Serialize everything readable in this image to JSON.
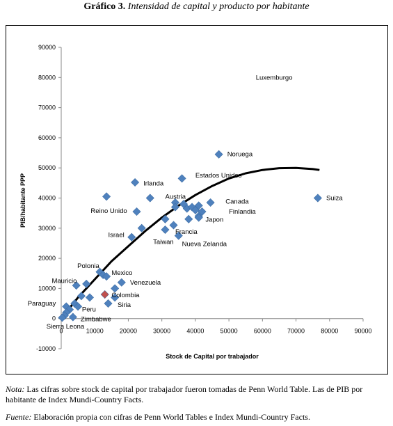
{
  "figure": {
    "number": "Gráfico 3.",
    "title": "Intensidad de capital y producto por habitante"
  },
  "notes": {
    "nota_lead": "Nota:",
    "nota_text": "Las cifras sobre stock de capital por trabajador fueron tomadas de Penn World Table. Las de PIB por habitante de Index Mundi-Country Facts.",
    "fuente_lead": "Fuente:",
    "fuente_text": "Elaboración propia con cifras de Penn World Tables e Index Mundi-Country Facts."
  },
  "chart_data": {
    "type": "scatter",
    "xlabel": "Stock de Capital por trabajador",
    "ylabel": "PIB/habitante PPP",
    "xlim": [
      0,
      90000
    ],
    "ylim": [
      -10000,
      90000
    ],
    "xticks": [
      0,
      10000,
      20000,
      30000,
      40000,
      50000,
      60000,
      70000,
      80000,
      90000
    ],
    "yticks": [
      -10000,
      0,
      10000,
      20000,
      30000,
      40000,
      50000,
      60000,
      70000,
      80000,
      90000
    ],
    "grid": false,
    "colors": {
      "point": "#4f81bd",
      "point_highlight": "#c0504d",
      "trend": "#000000"
    },
    "labels": [
      {
        "text": "Luxemburgo",
        "x": 58000,
        "y": 80000
      },
      {
        "text": "Noruega",
        "x": 49500,
        "y": 54500
      },
      {
        "text": "Estados Unidos",
        "x": 40000,
        "y": 47500
      },
      {
        "text": "Irlanda",
        "x": 24500,
        "y": 44800
      },
      {
        "text": "Austria",
        "x": 31000,
        "y": 40500
      },
      {
        "text": "Canada",
        "x": 49000,
        "y": 38800
      },
      {
        "text": "Suiza",
        "x": 79000,
        "y": 40000
      },
      {
        "text": "Reino Unido",
        "x": 8800,
        "y": 35700
      },
      {
        "text": "Finlandia",
        "x": 50000,
        "y": 35500
      },
      {
        "text": "Japon",
        "x": 43000,
        "y": 32800
      },
      {
        "text": "Israel",
        "x": 14000,
        "y": 27800
      },
      {
        "text": "Francia",
        "x": 34000,
        "y": 28800
      },
      {
        "text": "Taiwan",
        "x": 27400,
        "y": 25500
      },
      {
        "text": "Nueva Zelanda",
        "x": 36000,
        "y": 24800
      },
      {
        "text": "Polonia",
        "x": 4800,
        "y": 17500
      },
      {
        "text": "Mexico",
        "x": 15000,
        "y": 15200
      },
      {
        "text": "Mauricio",
        "x": -2800,
        "y": 12500
      },
      {
        "text": "Venezuela",
        "x": 20500,
        "y": 11900
      },
      {
        "text": "Colombia",
        "x": 15000,
        "y": 7800
      },
      {
        "text": "Paraguay",
        "x": -10000,
        "y": 5000
      },
      {
        "text": "Siria",
        "x": 16800,
        "y": 4500
      },
      {
        "text": "Peru",
        "x": 6200,
        "y": 3000
      },
      {
        "text": "Zimbabwe",
        "x": 5800,
        "y": -200
      },
      {
        "text": "Sierra Leona",
        "x": -4400,
        "y": -2600
      }
    ],
    "points": [
      {
        "x": 47000,
        "y": 54500
      },
      {
        "x": 36000,
        "y": 46500
      },
      {
        "x": 22000,
        "y": 45200
      },
      {
        "x": 76500,
        "y": 40000
      },
      {
        "x": 13500,
        "y": 40500
      },
      {
        "x": 26500,
        "y": 40000
      },
      {
        "x": 34000,
        "y": 38500
      },
      {
        "x": 36500,
        "y": 38000
      },
      {
        "x": 44500,
        "y": 38500
      },
      {
        "x": 37500,
        "y": 36500
      },
      {
        "x": 39000,
        "y": 37000
      },
      {
        "x": 41000,
        "y": 37500
      },
      {
        "x": 40000,
        "y": 36000
      },
      {
        "x": 22500,
        "y": 35500
      },
      {
        "x": 42000,
        "y": 35500
      },
      {
        "x": 34000,
        "y": 37000
      },
      {
        "x": 41000,
        "y": 34000
      },
      {
        "x": 41000,
        "y": 33500
      },
      {
        "x": 31000,
        "y": 33000
      },
      {
        "x": 38000,
        "y": 33000
      },
      {
        "x": 33500,
        "y": 31000
      },
      {
        "x": 24000,
        "y": 30000
      },
      {
        "x": 31000,
        "y": 29500
      },
      {
        "x": 35000,
        "y": 27500
      },
      {
        "x": 21000,
        "y": 27000
      },
      {
        "x": 11500,
        "y": 15500
      },
      {
        "x": 12500,
        "y": 14500
      },
      {
        "x": 13500,
        "y": 14000
      },
      {
        "x": 18000,
        "y": 12000
      },
      {
        "x": 4500,
        "y": 11000
      },
      {
        "x": 7500,
        "y": 11500
      },
      {
        "x": 16000,
        "y": 10000
      },
      {
        "x": 6000,
        "y": 7500
      },
      {
        "x": 8500,
        "y": 7000
      },
      {
        "x": 13000,
        "y": 8000,
        "highlight": true
      },
      {
        "x": 16000,
        "y": 7000
      },
      {
        "x": 14000,
        "y": 5000
      },
      {
        "x": 4000,
        "y": 5000
      },
      {
        "x": 5000,
        "y": 4000
      },
      {
        "x": 1500,
        "y": 4000
      },
      {
        "x": 2500,
        "y": 3000
      },
      {
        "x": 1500,
        "y": 2000
      },
      {
        "x": 1000,
        "y": 1000
      },
      {
        "x": 3500,
        "y": 500
      },
      {
        "x": 300,
        "y": 300
      }
    ],
    "trendline": {
      "x": [
        0,
        5000,
        10000,
        15000,
        20000,
        25000,
        30000,
        35000,
        40000,
        45000,
        50000,
        55000,
        60000,
        65000,
        70000,
        75000,
        77000
      ],
      "y": [
        0,
        7000,
        13000,
        19000,
        24000,
        29000,
        33500,
        37500,
        41000,
        44000,
        46500,
        48200,
        49300,
        49900,
        50000,
        49600,
        49300
      ]
    }
  }
}
